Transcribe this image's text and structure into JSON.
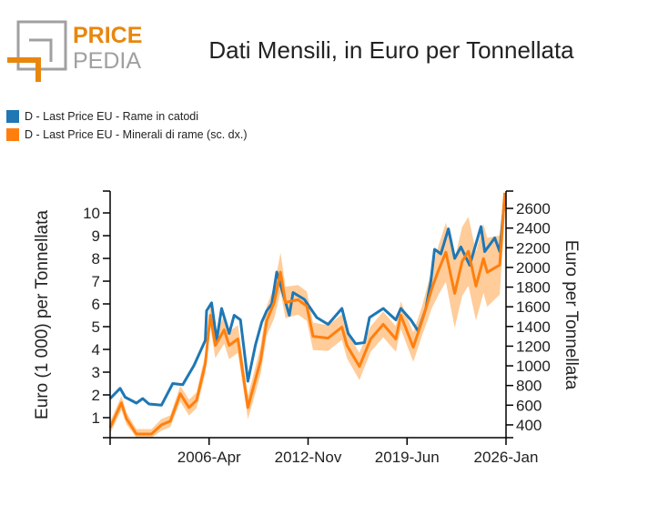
{
  "logo": {
    "text_top": "PRICE",
    "text_bottom": "PEDIA",
    "accent": "#e8870e",
    "gray": "#a0a0a0"
  },
  "chart_data": {
    "type": "line",
    "title": "Dati Mensili, in Euro per Tonnellata",
    "ylabel": "Euro (1 000) per Tonnellata",
    "ylabel_right": "Euro per Tonnellata",
    "legend_placement": "top-left",
    "x_ticks": [
      "",
      "2006-Apr",
      "2012-Nov",
      "2019-Jun",
      "2026-Jan"
    ],
    "x_tick_dates": [
      "1999-09",
      "2006-04",
      "2012-11",
      "2019-06",
      "2026-01"
    ],
    "xlim": [
      "1999-09",
      "2026-01"
    ],
    "ylim": [
      0.12,
      10.96
    ],
    "y_ticks": [
      1,
      2,
      3,
      4,
      5,
      6,
      7,
      8,
      9,
      10
    ],
    "ylim_right": [
      270,
      2776
    ],
    "y_ticks_right": [
      400,
      600,
      800,
      1000,
      1200,
      1400,
      1600,
      1800,
      2000,
      2200,
      2400,
      2600
    ],
    "grid": false,
    "series": [
      {
        "name": "D - Last Price EU - Rame in catodi",
        "axis": "left",
        "color": "#1f77b4",
        "points": [
          [
            "1999-09",
            1.84
          ],
          [
            "2000-05",
            2.29
          ],
          [
            "2000-09",
            1.9
          ],
          [
            "2001-06",
            1.64
          ],
          [
            "2001-11",
            1.84
          ],
          [
            "2002-04",
            1.6
          ],
          [
            "2003-02",
            1.55
          ],
          [
            "2003-11",
            2.5
          ],
          [
            "2004-07",
            2.45
          ],
          [
            "2005-04",
            3.3
          ],
          [
            "2006-01",
            4.4
          ],
          [
            "2006-02",
            5.7
          ],
          [
            "2006-06",
            6.05
          ],
          [
            "2006-10",
            4.4
          ],
          [
            "2007-02",
            5.8
          ],
          [
            "2007-08",
            4.7
          ],
          [
            "2007-12",
            5.5
          ],
          [
            "2008-05",
            5.3
          ],
          [
            "2008-11",
            2.6
          ],
          [
            "2009-05",
            4.2
          ],
          [
            "2009-10",
            5.2
          ],
          [
            "2010-02",
            5.7
          ],
          [
            "2010-06",
            6.0
          ],
          [
            "2010-10",
            7.4
          ],
          [
            "2011-08",
            5.5
          ],
          [
            "2011-11",
            6.5
          ],
          [
            "2012-08",
            6.2
          ],
          [
            "2013-06",
            5.4
          ],
          [
            "2014-03",
            5.1
          ],
          [
            "2015-02",
            5.8
          ],
          [
            "2015-07",
            4.7
          ],
          [
            "2016-01",
            4.25
          ],
          [
            "2016-08",
            4.3
          ],
          [
            "2016-12",
            5.4
          ],
          [
            "2017-11",
            5.8
          ],
          [
            "2018-09",
            5.3
          ],
          [
            "2019-01",
            5.8
          ],
          [
            "2019-09",
            5.3
          ],
          [
            "2020-03",
            4.8
          ],
          [
            "2020-09",
            5.8
          ],
          [
            "2021-01",
            7.0
          ],
          [
            "2021-04",
            8.4
          ],
          [
            "2021-09",
            8.2
          ],
          [
            "2022-03",
            9.3
          ],
          [
            "2022-08",
            8.0
          ],
          [
            "2023-01",
            8.5
          ],
          [
            "2023-08",
            7.7
          ],
          [
            "2024-05",
            9.4
          ],
          [
            "2024-08",
            8.3
          ],
          [
            "2025-04",
            8.9
          ],
          [
            "2025-08",
            8.3
          ],
          [
            "2025-12",
            10.7
          ]
        ]
      },
      {
        "name": "D - Last Price EU - Minerali di rame (sc. dx.)",
        "axis": "right",
        "color": "#ff7f0e",
        "band_color": "#ffbb78",
        "points": [
          [
            "1999-09",
            372
          ],
          [
            "2000-06",
            623
          ],
          [
            "2000-10",
            465
          ],
          [
            "2001-06",
            307
          ],
          [
            "2002-06",
            307
          ],
          [
            "2003-02",
            400
          ],
          [
            "2003-09",
            437
          ],
          [
            "2004-05",
            716
          ],
          [
            "2004-12",
            576
          ],
          [
            "2005-06",
            650
          ],
          [
            "2006-01",
            1022
          ],
          [
            "2006-05",
            1514
          ],
          [
            "2006-09",
            1208
          ],
          [
            "2007-04",
            1366
          ],
          [
            "2007-08",
            1208
          ],
          [
            "2008-03",
            1273
          ],
          [
            "2008-11",
            576
          ],
          [
            "2009-09",
            1050
          ],
          [
            "2010-02",
            1459
          ],
          [
            "2010-08",
            1644
          ],
          [
            "2011-01",
            1951
          ],
          [
            "2011-05",
            1644
          ],
          [
            "2012-03",
            1672
          ],
          [
            "2012-10",
            1607
          ],
          [
            "2013-03",
            1300
          ],
          [
            "2014-03",
            1282
          ],
          [
            "2015-02",
            1394
          ],
          [
            "2015-06",
            1208
          ],
          [
            "2016-04",
            994
          ],
          [
            "2017-01",
            1273
          ],
          [
            "2017-11",
            1421
          ],
          [
            "2018-09",
            1273
          ],
          [
            "2019-01",
            1514
          ],
          [
            "2019-11",
            1189
          ],
          [
            "2020-06",
            1459
          ],
          [
            "2021-02",
            1793
          ],
          [
            "2021-07",
            1969
          ],
          [
            "2022-01",
            2155
          ],
          [
            "2022-08",
            1737
          ],
          [
            "2023-02",
            2062
          ],
          [
            "2023-07",
            2164
          ],
          [
            "2024-01",
            1811
          ],
          [
            "2024-07",
            2090
          ],
          [
            "2024-10",
            1951
          ],
          [
            "2025-08",
            2025
          ],
          [
            "2025-12",
            2758
          ]
        ],
        "band_halfwidth": [
          60,
          70,
          60,
          50,
          50,
          60,
          60,
          80,
          80,
          80,
          100,
          120,
          130,
          140,
          140,
          140,
          120,
          140,
          150,
          160,
          200,
          160,
          150,
          150,
          140,
          130,
          130,
          130,
          140,
          130,
          130,
          130,
          140,
          150,
          150,
          200,
          250,
          300,
          350,
          350,
          350,
          350,
          350,
          350,
          300,
          250
        ]
      }
    ]
  }
}
